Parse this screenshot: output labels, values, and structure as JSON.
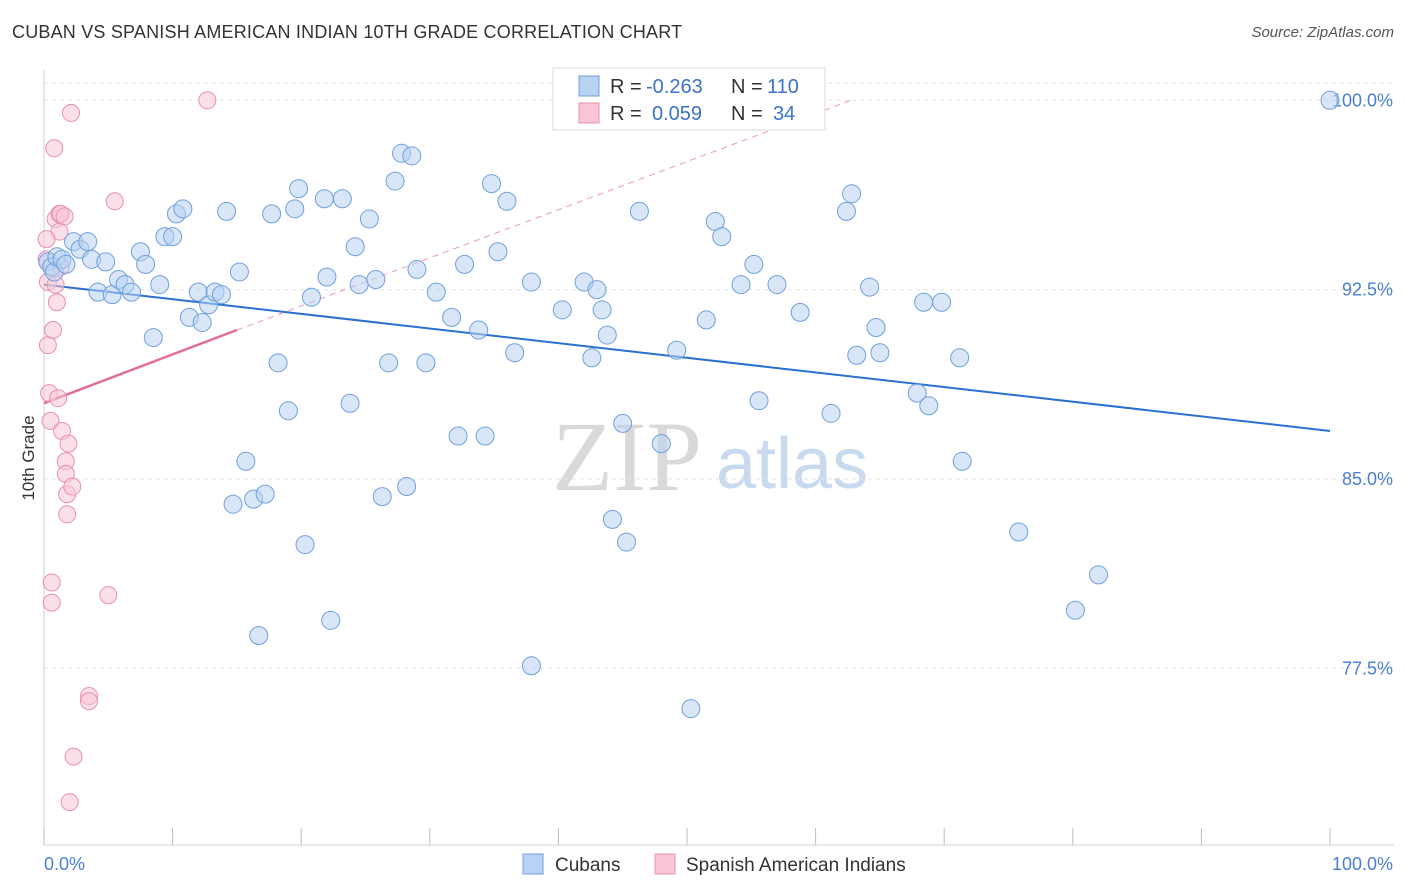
{
  "header": {
    "title": "CUBAN VS SPANISH AMERICAN INDIAN 10TH GRADE CORRELATION CHART",
    "source": "Source: ZipAtlas.com"
  },
  "watermark": {
    "zip": "ZIP",
    "atlas": "atlas"
  },
  "colors": {
    "blue_fill": "#b8d2f3",
    "blue_stroke": "#6fa0dd",
    "blue_line": "#2b6fd0",
    "pink_fill": "#f8c6d5",
    "pink_stroke": "#ec8fad",
    "pink_line": "#e56c96",
    "grid": "#e3e3e3",
    "axis_label": "#4a7fd0"
  },
  "legend_box": {
    "rows": [
      {
        "series": "Cubans",
        "r_label": "R =",
        "r_value": "-0.263",
        "n_label": "N =",
        "n_value": "110"
      },
      {
        "series": "Spanish American Indians",
        "r_label": "R =",
        "r_value": "0.059",
        "n_label": "N =",
        "n_value": "34"
      }
    ]
  },
  "chart_data": {
    "type": "scatter",
    "title": "CUBAN VS SPANISH AMERICAN INDIAN 10TH GRADE CORRELATION CHART",
    "xlabel": "",
    "ylabel": "10th Grade",
    "xlim": [
      0,
      100
    ],
    "ylim": [
      70.5,
      101.2
    ],
    "x_tick_labels": [
      "0.0%",
      "100.0%"
    ],
    "y_ticks": [
      77.5,
      85.0,
      92.5,
      100.0
    ],
    "y_tick_labels": [
      "77.5%",
      "85.0%",
      "92.5%",
      "100.0%"
    ],
    "grid": true,
    "legend": [
      "Cubans",
      "Spanish American Indians"
    ],
    "series": [
      {
        "name": "Cubans",
        "r": -0.263,
        "n": 110,
        "trend": {
          "x": [
            0,
            100
          ],
          "y": [
            92.7,
            86.9
          ],
          "style": "solid"
        },
        "points": [
          [
            0.3,
            93.6
          ],
          [
            0.6,
            93.4
          ],
          [
            0.8,
            93.2
          ],
          [
            1.0,
            93.8
          ],
          [
            1.4,
            93.7
          ],
          [
            1.7,
            93.5
          ],
          [
            2.3,
            94.4
          ],
          [
            2.8,
            94.1
          ],
          [
            3.4,
            94.4
          ],
          [
            3.7,
            93.7
          ],
          [
            4.2,
            92.4
          ],
          [
            4.8,
            93.6
          ],
          [
            5.3,
            92.3
          ],
          [
            5.8,
            92.9
          ],
          [
            6.3,
            92.7
          ],
          [
            6.8,
            92.4
          ],
          [
            7.5,
            94.0
          ],
          [
            7.9,
            93.5
          ],
          [
            8.5,
            90.6
          ],
          [
            9.0,
            92.7
          ],
          [
            9.4,
            94.6
          ],
          [
            10.0,
            94.6
          ],
          [
            10.3,
            95.5
          ],
          [
            10.8,
            95.7
          ],
          [
            11.3,
            91.4
          ],
          [
            12.0,
            92.4
          ],
          [
            12.3,
            91.2
          ],
          [
            12.8,
            91.9
          ],
          [
            13.3,
            92.4
          ],
          [
            13.8,
            92.3
          ],
          [
            14.2,
            95.6
          ],
          [
            14.7,
            84.0
          ],
          [
            15.2,
            93.2
          ],
          [
            15.7,
            85.7
          ],
          [
            16.3,
            84.2
          ],
          [
            16.7,
            78.8
          ],
          [
            17.2,
            84.4
          ],
          [
            17.7,
            95.5
          ],
          [
            18.2,
            89.6
          ],
          [
            19.0,
            87.7
          ],
          [
            19.5,
            95.7
          ],
          [
            19.8,
            96.5
          ],
          [
            20.3,
            82.4
          ],
          [
            20.8,
            92.2
          ],
          [
            21.8,
            96.1
          ],
          [
            22.0,
            93.0
          ],
          [
            22.3,
            79.4
          ],
          [
            23.2,
            96.1
          ],
          [
            23.8,
            88.0
          ],
          [
            24.2,
            94.2
          ],
          [
            24.5,
            92.7
          ],
          [
            25.3,
            95.3
          ],
          [
            25.8,
            92.9
          ],
          [
            26.3,
            84.3
          ],
          [
            26.8,
            89.6
          ],
          [
            27.3,
            96.8
          ],
          [
            27.8,
            97.9
          ],
          [
            28.2,
            84.7
          ],
          [
            28.6,
            97.8
          ],
          [
            29.0,
            93.3
          ],
          [
            29.7,
            89.6
          ],
          [
            30.5,
            92.4
          ],
          [
            31.7,
            91.4
          ],
          [
            32.2,
            86.7
          ],
          [
            32.7,
            93.5
          ],
          [
            33.8,
            90.9
          ],
          [
            34.3,
            86.7
          ],
          [
            34.8,
            96.7
          ],
          [
            35.3,
            94.0
          ],
          [
            36.0,
            96.0
          ],
          [
            36.6,
            90.0
          ],
          [
            37.9,
            92.8
          ],
          [
            37.9,
            77.6
          ],
          [
            40.3,
            91.7
          ],
          [
            42.0,
            92.8
          ],
          [
            42.6,
            89.8
          ],
          [
            43.0,
            92.5
          ],
          [
            43.4,
            91.7
          ],
          [
            43.8,
            90.7
          ],
          [
            44.2,
            83.4
          ],
          [
            45.0,
            87.2
          ],
          [
            45.3,
            82.5
          ],
          [
            46.3,
            95.6
          ],
          [
            48.0,
            86.4
          ],
          [
            49.2,
            90.1
          ],
          [
            50.3,
            75.9
          ],
          [
            51.5,
            91.3
          ],
          [
            52.2,
            95.2
          ],
          [
            52.7,
            94.6
          ],
          [
            54.2,
            92.7
          ],
          [
            55.2,
            93.5
          ],
          [
            55.6,
            88.1
          ],
          [
            57.0,
            92.7
          ],
          [
            58.8,
            91.6
          ],
          [
            61.2,
            87.6
          ],
          [
            62.4,
            95.6
          ],
          [
            62.8,
            96.3
          ],
          [
            63.2,
            89.9
          ],
          [
            64.2,
            92.6
          ],
          [
            64.7,
            91.0
          ],
          [
            65.0,
            90.0
          ],
          [
            67.9,
            88.4
          ],
          [
            68.4,
            92.0
          ],
          [
            68.8,
            87.9
          ],
          [
            69.8,
            92.0
          ],
          [
            71.2,
            89.8
          ],
          [
            71.4,
            85.7
          ],
          [
            75.8,
            82.9
          ],
          [
            80.2,
            79.8
          ],
          [
            82.0,
            81.2
          ],
          [
            100.0,
            100.0
          ]
        ]
      },
      {
        "name": "Spanish American Indians",
        "r": 0.059,
        "n": 34,
        "trend": {
          "x": [
            0,
            15
          ],
          "y": [
            88.0,
            90.9
          ],
          "style": "solid",
          "extended_dashed_to": [
            100,
            106.0
          ]
        },
        "points": [
          [
            0.2,
            93.7
          ],
          [
            0.3,
            92.8
          ],
          [
            0.3,
            90.3
          ],
          [
            0.4,
            88.4
          ],
          [
            0.5,
            87.3
          ],
          [
            0.6,
            80.9
          ],
          [
            0.6,
            80.1
          ],
          [
            0.7,
            90.9
          ],
          [
            0.8,
            98.1
          ],
          [
            0.9,
            95.3
          ],
          [
            0.9,
            92.7
          ],
          [
            1.0,
            92.0
          ],
          [
            1.1,
            88.2
          ],
          [
            1.2,
            94.8
          ],
          [
            1.2,
            95.5
          ],
          [
            1.3,
            95.5
          ],
          [
            1.3,
            93.4
          ],
          [
            1.4,
            86.9
          ],
          [
            1.6,
            95.4
          ],
          [
            1.7,
            85.7
          ],
          [
            1.7,
            85.2
          ],
          [
            1.8,
            84.4
          ],
          [
            1.8,
            83.6
          ],
          [
            1.9,
            86.4
          ],
          [
            2.0,
            72.2
          ],
          [
            2.1,
            99.5
          ],
          [
            2.2,
            84.7
          ],
          [
            2.3,
            74.0
          ],
          [
            3.5,
            76.4
          ],
          [
            3.5,
            76.2
          ],
          [
            5.0,
            80.4
          ],
          [
            5.5,
            96.0
          ],
          [
            12.7,
            100.0
          ],
          [
            0.2,
            94.5
          ]
        ]
      }
    ]
  }
}
